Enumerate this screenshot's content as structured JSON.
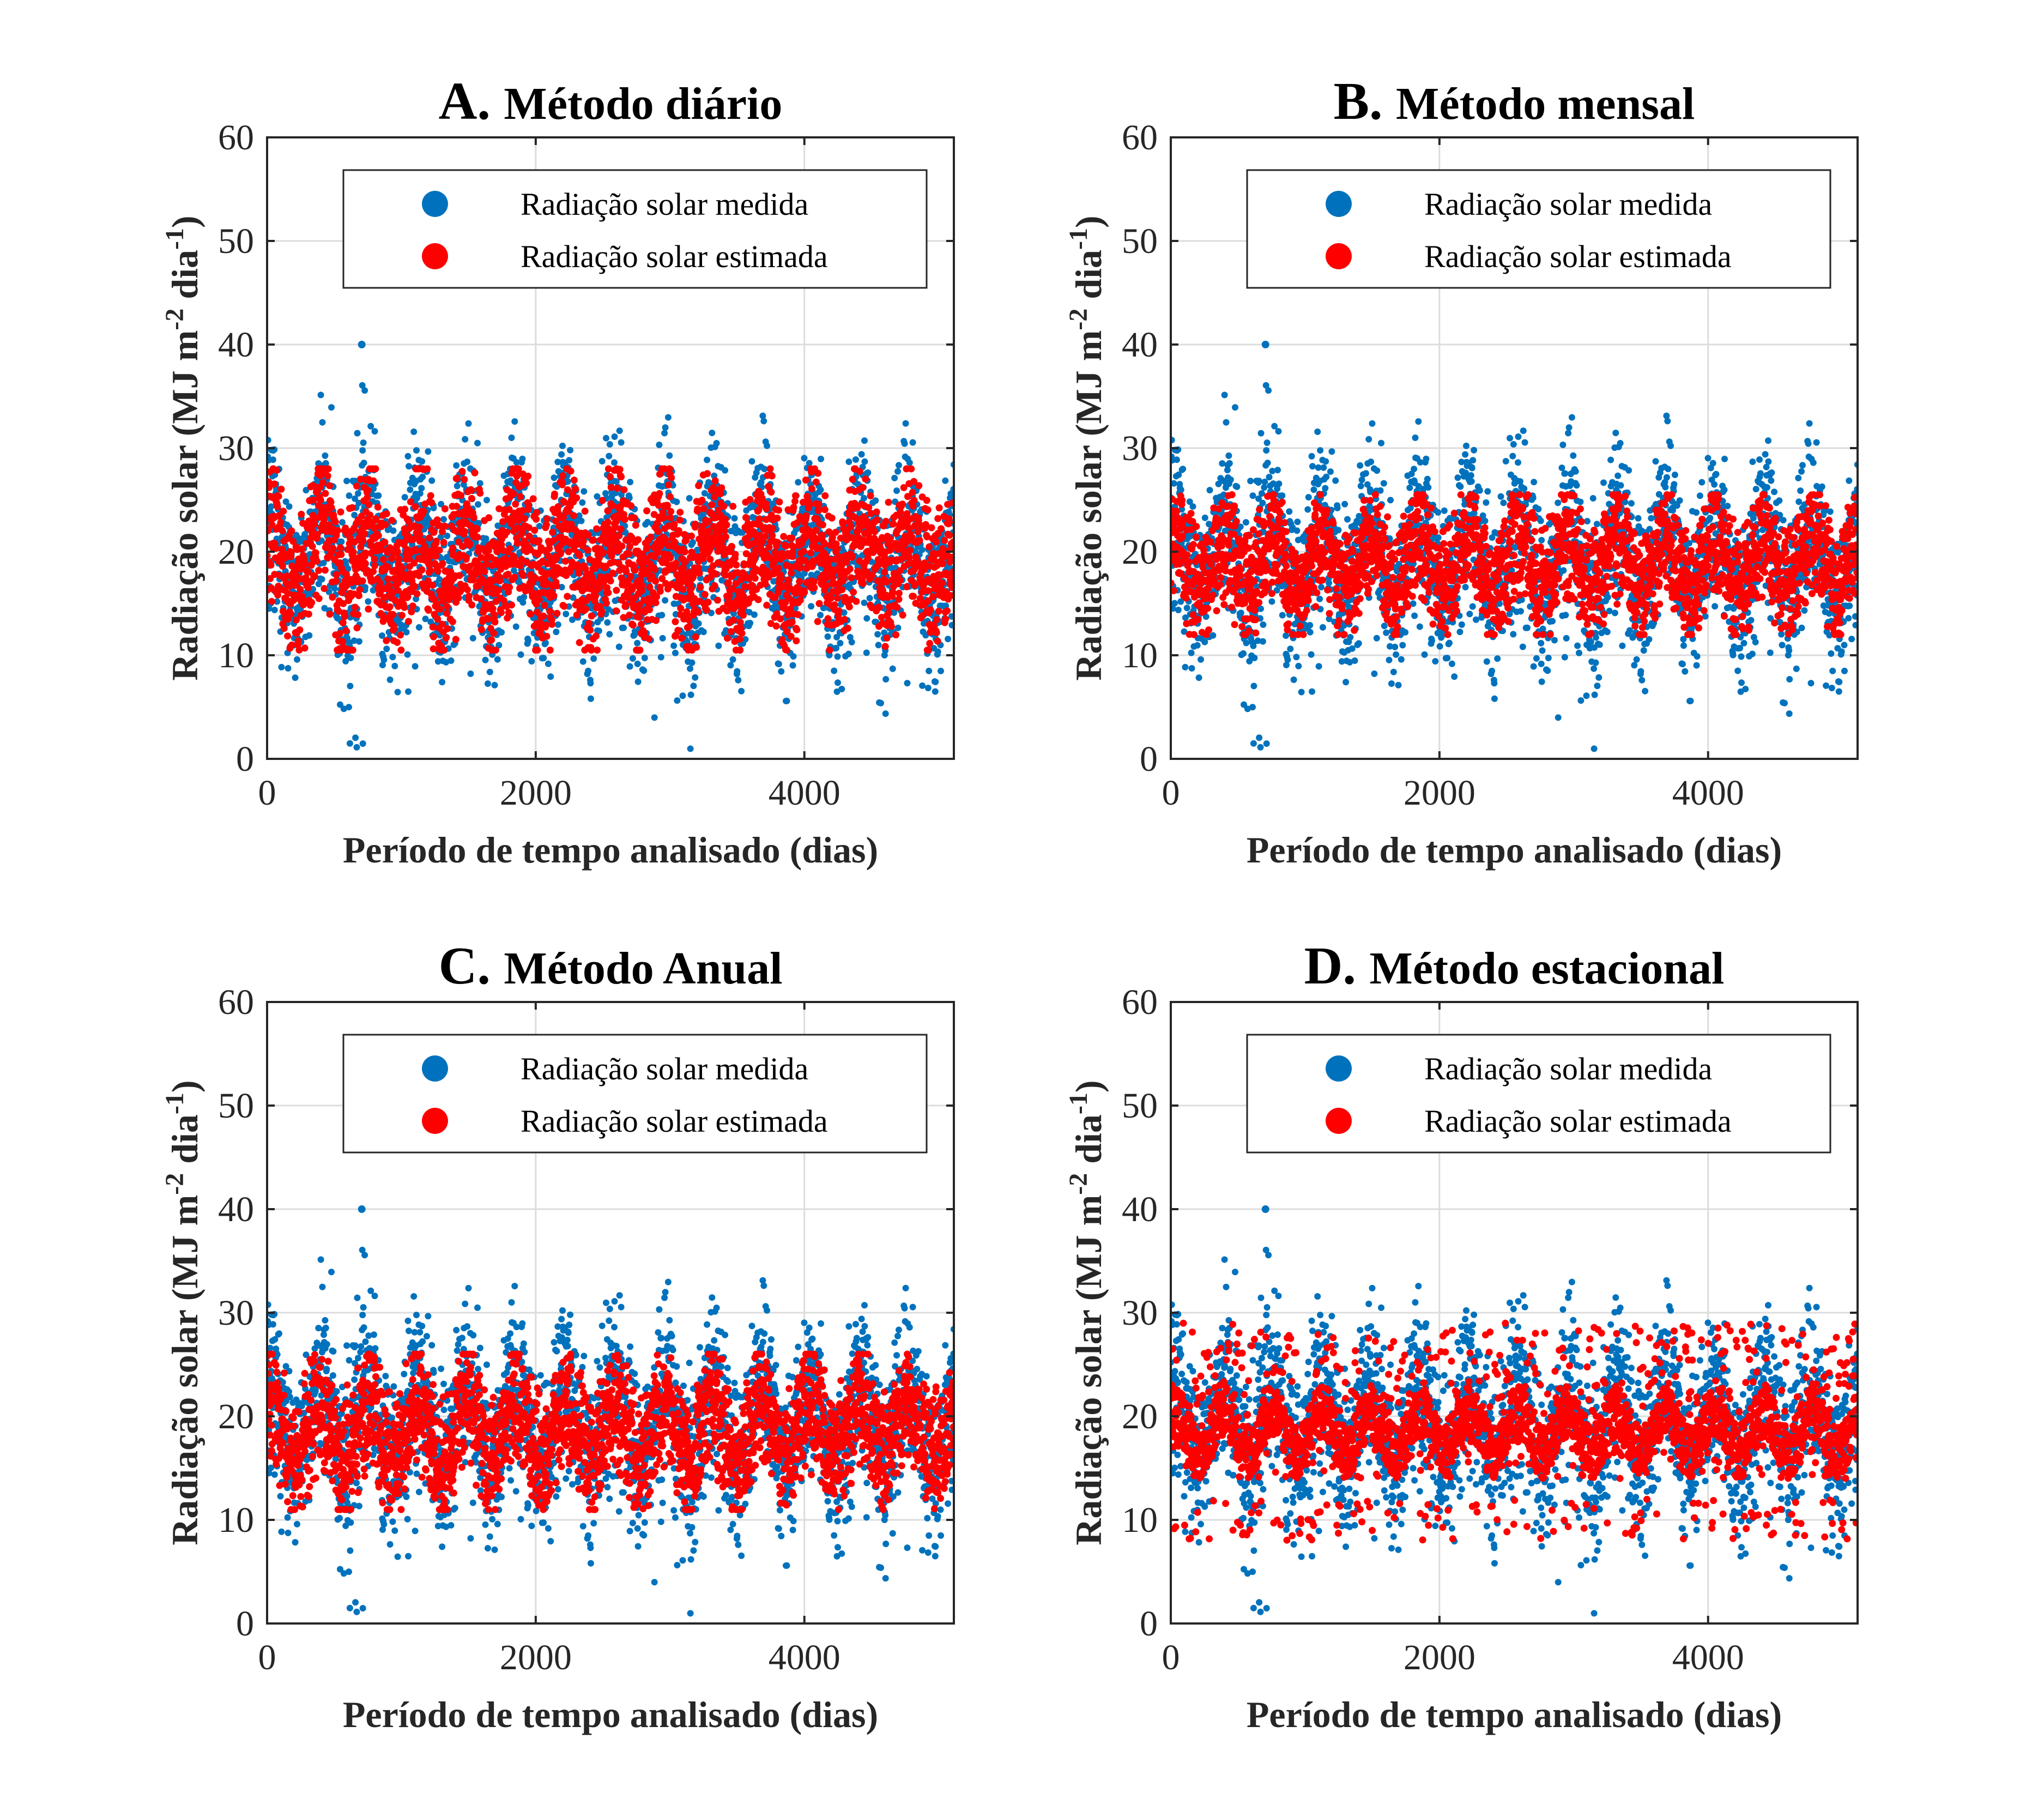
{
  "chart_data": [
    {
      "type": "scatter",
      "title_letter": "A.",
      "title": "Método diário",
      "xlabel": "Período de tempo analisado (dias)",
      "ylabel_parts": [
        "Radiação solar (MJ m",
        "-2",
        " dia",
        "-1",
        ")"
      ],
      "xlim": [
        0,
        5113
      ],
      "ylim": [
        0,
        60
      ],
      "xticks": [
        0,
        2000,
        4000
      ],
      "yticks": [
        0,
        10,
        20,
        30,
        40,
        50,
        60
      ],
      "grid": true,
      "legend_position": "top-right",
      "series": [
        {
          "name": "Radiação solar medida",
          "color": "#0072BD",
          "style": "measured"
        },
        {
          "name": "Radiação solar estimada",
          "color": "#FF0000",
          "style": "daily",
          "min": 10.5,
          "max": 28.0
        }
      ]
    },
    {
      "type": "scatter",
      "title_letter": "B.",
      "title": "Método mensal",
      "xlabel": "Período de tempo analisado (dias)",
      "ylabel_parts": [
        "Radiação solar (MJ m",
        "-2",
        " dia",
        "-1",
        ")"
      ],
      "xlim": [
        0,
        5113
      ],
      "ylim": [
        0,
        60
      ],
      "xticks": [
        0,
        2000,
        4000
      ],
      "yticks": [
        0,
        10,
        20,
        30,
        40,
        50,
        60
      ],
      "grid": true,
      "legend_position": "top-right",
      "series": [
        {
          "name": "Radiação solar medida",
          "color": "#0072BD",
          "style": "measured"
        },
        {
          "name": "Radiação solar estimada",
          "color": "#FF0000",
          "style": "monthly",
          "min": 12.0,
          "max": 25.5
        }
      ]
    },
    {
      "type": "scatter",
      "title_letter": "C.",
      "title": "Método Anual",
      "xlabel": "Período de tempo analisado (dias)",
      "ylabel_parts": [
        "Radiação solar (MJ m",
        "-2",
        " dia",
        "-1",
        ")"
      ],
      "xlim": [
        0,
        5113
      ],
      "ylim": [
        0,
        60
      ],
      "xticks": [
        0,
        2000,
        4000
      ],
      "yticks": [
        0,
        10,
        20,
        30,
        40,
        50,
        60
      ],
      "grid": true,
      "legend_position": "top-right",
      "series": [
        {
          "name": "Radiação solar medida",
          "color": "#0072BD",
          "style": "measured"
        },
        {
          "name": "Radiação solar estimada",
          "color": "#FF0000",
          "style": "annual",
          "min": 11.0,
          "max": 26.0
        }
      ]
    },
    {
      "type": "scatter",
      "title_letter": "D.",
      "title": "Método estacional",
      "xlabel": "Período de tempo analisado (dias)",
      "ylabel_parts": [
        "Radiação solar (MJ m",
        "-2",
        " dia",
        "-1",
        ")"
      ],
      "xlim": [
        0,
        5113
      ],
      "ylim": [
        0,
        60
      ],
      "xticks": [
        0,
        2000,
        4000
      ],
      "yticks": [
        0,
        10,
        20,
        30,
        40,
        50,
        60
      ],
      "grid": true,
      "legend_position": "top-right",
      "series": [
        {
          "name": "Radiação solar medida",
          "color": "#0072BD",
          "style": "measured"
        },
        {
          "name": "Radiação solar estimada",
          "color": "#FF0000",
          "style": "seasonal",
          "min": 8.0,
          "max": 29.0
        }
      ]
    }
  ]
}
